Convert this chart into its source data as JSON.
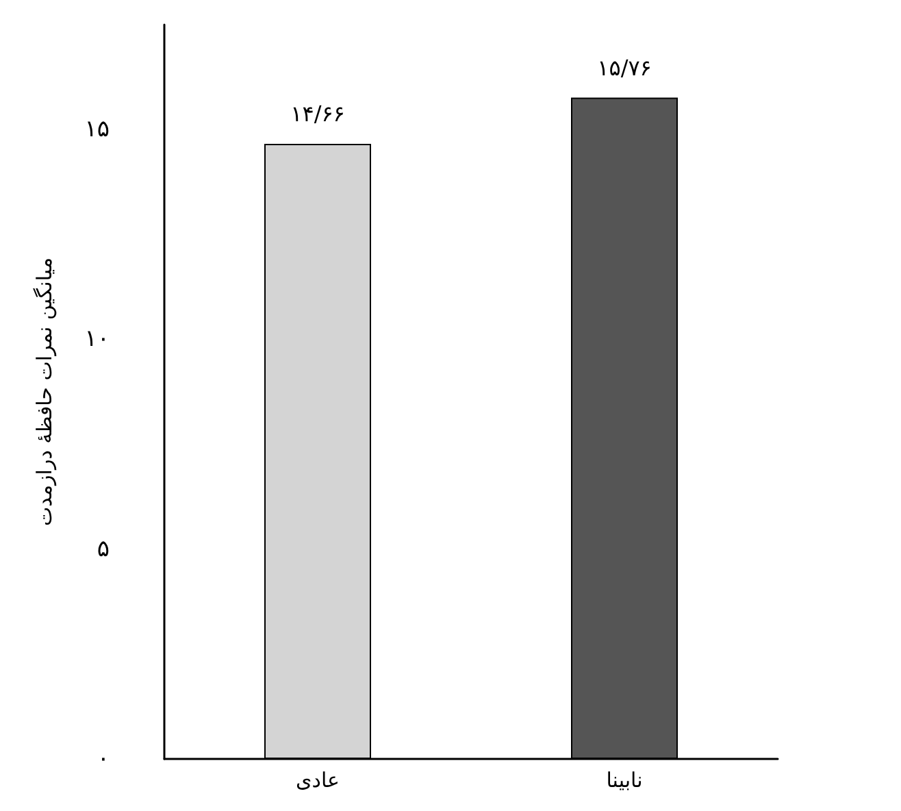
{
  "chart_data": {
    "type": "bar",
    "ylabel": "میانگین نمرات حافظهٔ درازمدت",
    "categories": [
      "عادی",
      "نابینا"
    ],
    "values": [
      14.66,
      15.76
    ],
    "colors": [
      "#d4d4d4",
      "#555555"
    ],
    "value_labels": [
      "۱۴/۶۶",
      "۱۵/۷۶"
    ],
    "ylim": [
      0,
      17.5
    ],
    "yticks": [
      {
        "value": 0,
        "label": "۰"
      },
      {
        "value": 5,
        "label": "۵"
      },
      {
        "value": 10,
        "label": "۱۰"
      },
      {
        "value": 15,
        "label": "۱۵"
      }
    ]
  }
}
